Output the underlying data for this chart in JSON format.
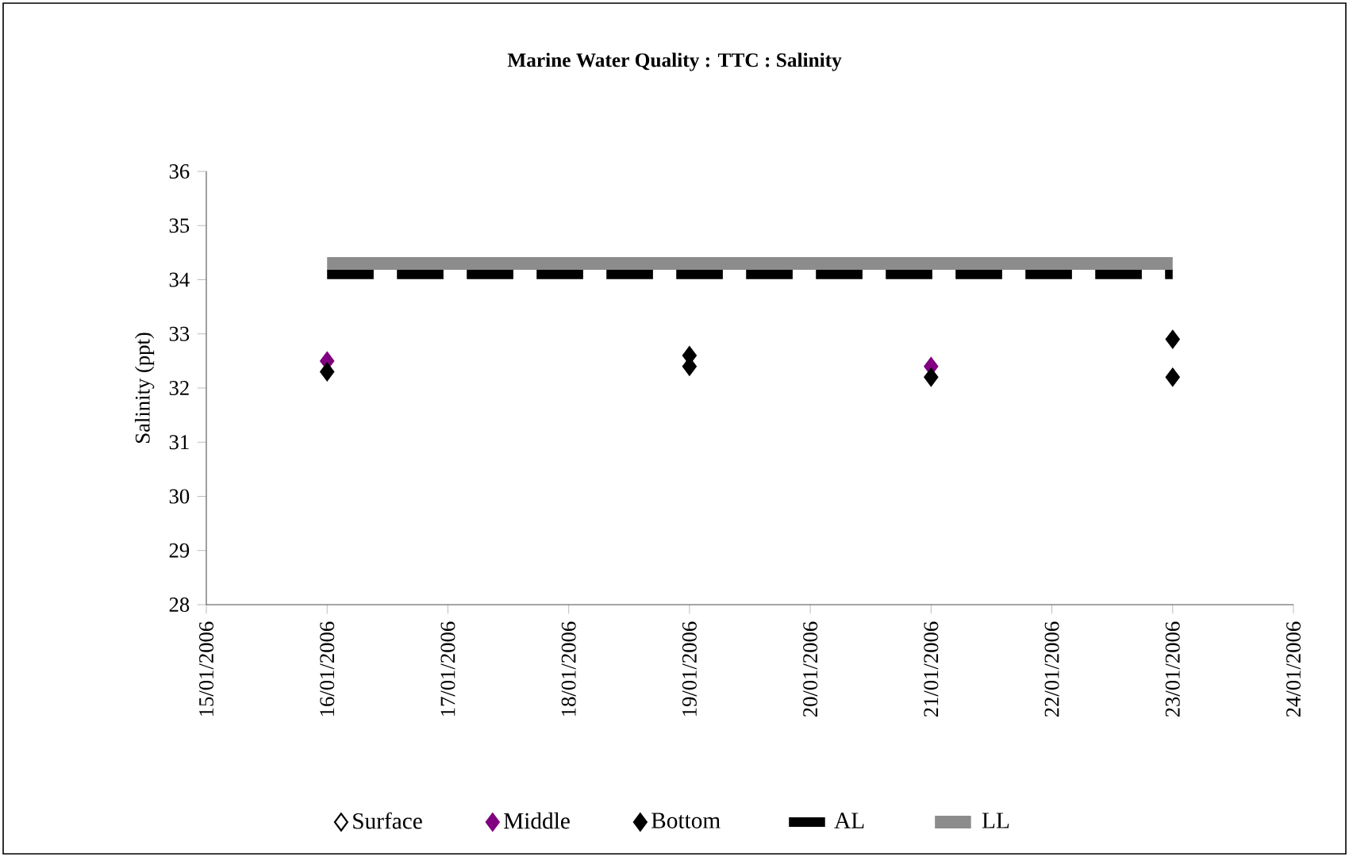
{
  "chart_data": {
    "type": "scatter",
    "title": "Marine Water Quality : TTC : Salinity",
    "ylabel": "Salinity (ppt)",
    "xlim": [
      "2006-01-15",
      "2006-01-24"
    ],
    "xticks": [
      {
        "value": "2006-01-15",
        "label": "15/01/2006"
      },
      {
        "value": "2006-01-16",
        "label": "16/01/2006"
      },
      {
        "value": "2006-01-17",
        "label": "17/01/2006"
      },
      {
        "value": "2006-01-18",
        "label": "18/01/2006"
      },
      {
        "value": "2006-01-19",
        "label": "19/01/2006"
      },
      {
        "value": "2006-01-20",
        "label": "20/01/2006"
      },
      {
        "value": "2006-01-21",
        "label": "21/01/2006"
      },
      {
        "value": "2006-01-22",
        "label": "22/01/2006"
      },
      {
        "value": "2006-01-23",
        "label": "23/01/2006"
      },
      {
        "value": "2006-01-24",
        "label": "24/01/2006"
      }
    ],
    "ylim": [
      28,
      36
    ],
    "yticks": [
      28,
      29,
      30,
      31,
      32,
      33,
      34,
      35,
      36
    ],
    "marker": "diamond",
    "legend": "bottom",
    "grid": false,
    "series": [
      {
        "name": "Surface",
        "color": "#ffffff"
      },
      {
        "name": "Middle",
        "color": "#800080",
        "x": [
          "2006-01-16",
          "2006-01-21"
        ],
        "values": [
          32.5,
          32.4
        ]
      },
      {
        "name": "Bottom",
        "color": "#000000",
        "x": [
          "2006-01-16",
          "2006-01-19",
          "2006-01-19",
          "2006-01-21",
          "2006-01-23",
          "2006-01-23"
        ],
        "values": [
          32.3,
          32.6,
          32.4,
          32.2,
          32.9,
          32.2
        ]
      },
      {
        "name": "AL",
        "type": "line",
        "line_style": "dashed",
        "marker": "none",
        "color": "#000000",
        "x": [
          "2006-01-16",
          "2006-01-23"
        ],
        "values": [
          34.1,
          34.1
        ]
      },
      {
        "name": "LL",
        "type": "line",
        "line_style": "solid",
        "marker": "none",
        "color": "#8c8c8c",
        "x": [
          "2006-01-16",
          "2006-01-23"
        ],
        "values": [
          34.3,
          34.3
        ]
      }
    ]
  }
}
